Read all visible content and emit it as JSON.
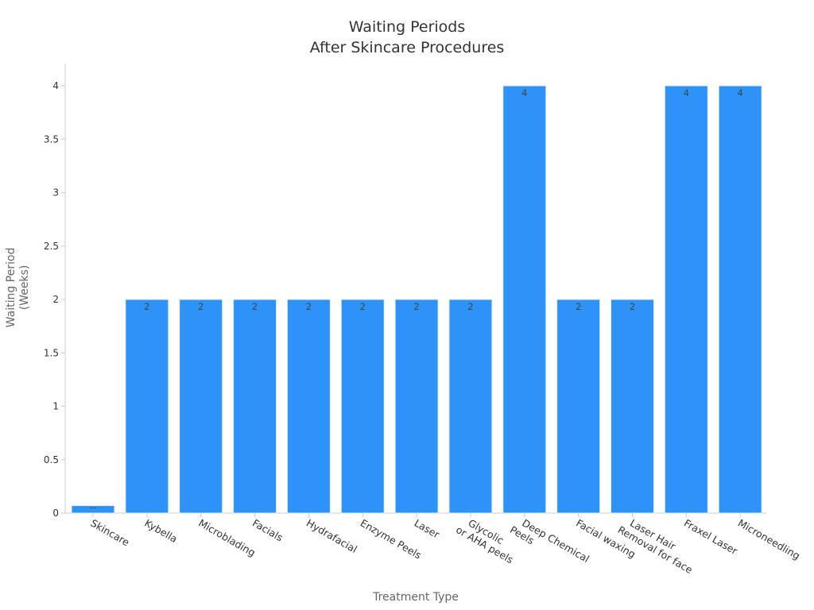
{
  "chart_data": {
    "type": "bar",
    "title_lines": [
      "Waiting Periods",
      "After Skincare Procedures"
    ],
    "xlabel": "Treatment Type",
    "ylabel_lines": [
      "Waiting Period",
      "(Weeks)"
    ],
    "categories": [
      "Skincare",
      "Kybella",
      "Microblading",
      "Facials",
      "Hydrafacial",
      "Enzyme Peels",
      "Laser",
      "Glycolic or AHA peels",
      "Deep Chemical Peels",
      "Facial waxing",
      "Laser Hair Removal for face",
      "Fraxel Laser",
      "Microneedling"
    ],
    "category_label_lines": [
      [
        "Skincare"
      ],
      [
        "Kybella"
      ],
      [
        "Microblading"
      ],
      [
        "Facials"
      ],
      [
        "Hydrafacial"
      ],
      [
        "Enzyme Peels"
      ],
      [
        "Laser"
      ],
      [
        "Glycolic",
        "or AHA peels"
      ],
      [
        "Deep Chemical",
        "Peels"
      ],
      [
        "Facial waxing"
      ],
      [
        "Laser Hair",
        "Removal for face"
      ],
      [
        "Fraxel Laser"
      ],
      [
        "Microneedling"
      ]
    ],
    "values": [
      0.07,
      2,
      2,
      2,
      2,
      2,
      2,
      2,
      4,
      2,
      2,
      4,
      4
    ],
    "data_labels": [
      "--",
      "2",
      "2",
      "2",
      "2",
      "2",
      "2",
      "2",
      "4",
      "2",
      "2",
      "4",
      "4"
    ],
    "ylim": [
      0,
      4.2
    ],
    "yticks": [
      0,
      0.5,
      1,
      1.5,
      2,
      2.5,
      3,
      3.5,
      4
    ],
    "ytick_labels": [
      "0",
      "0.5",
      "1",
      "1.5",
      "2",
      "2.5",
      "3",
      "3.5",
      "4"
    ],
    "bar_color": "#2e93f8",
    "bar_edge_color": "#e6eef8",
    "axis_color": "#cccccc",
    "grid": false,
    "legend": "none"
  }
}
